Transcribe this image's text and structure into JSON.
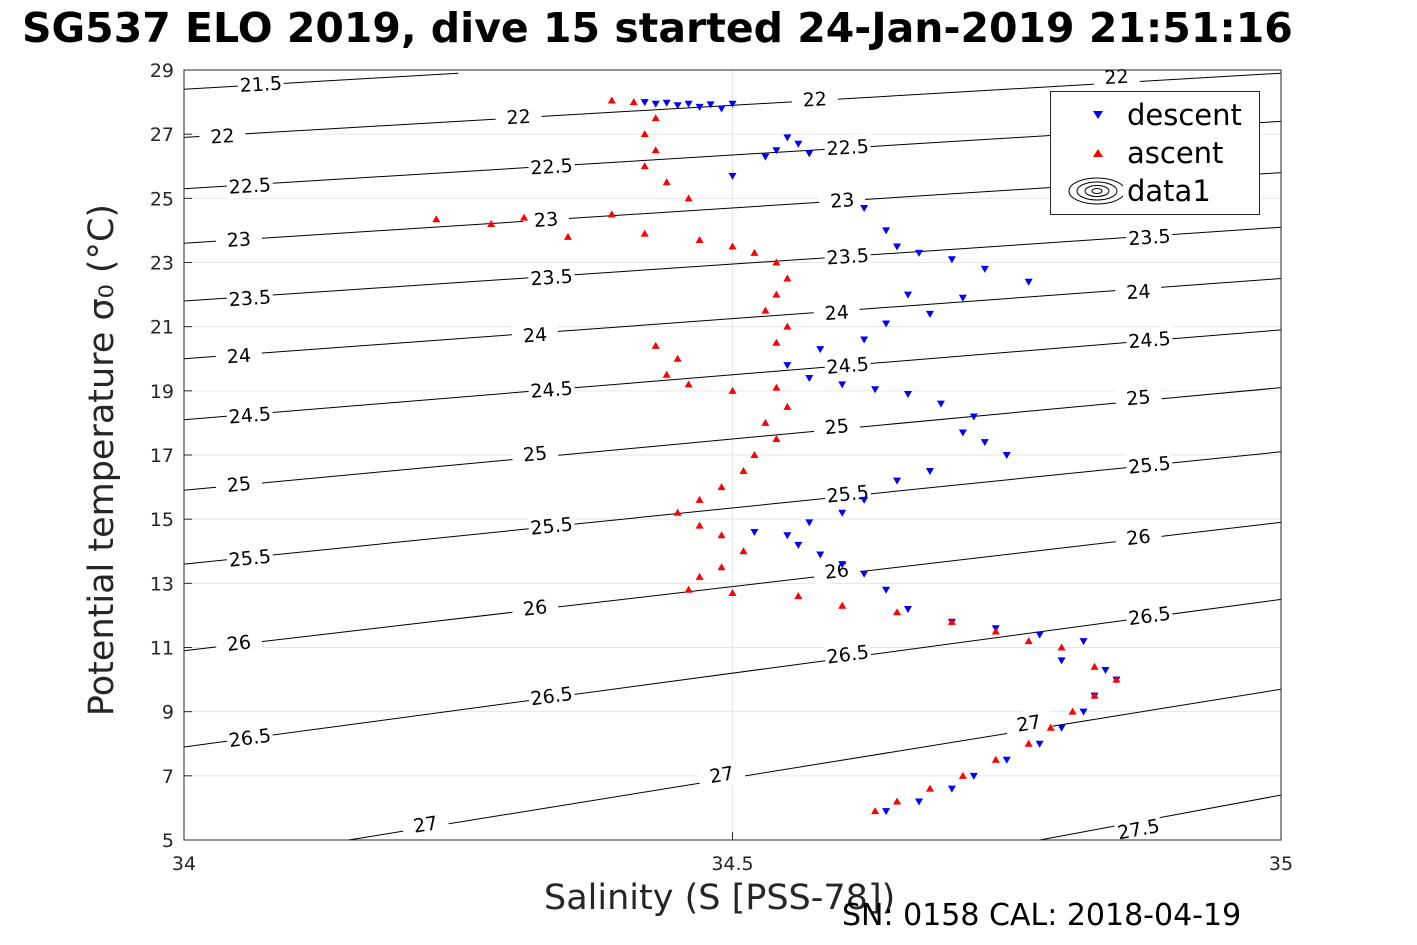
{
  "header": {
    "title": "SG537 ELO 2019, dive 15 started 24-Jan-2019 21:51:16"
  },
  "footer": {
    "sn_cal": "SN: 0158  CAL: 2018-04-19"
  },
  "chart_data": {
    "type": "scatter",
    "xlabel": "Salinity (S [PSS-78])",
    "ylabel": "Potential temperature σ₀ (°C)",
    "xlim": [
      34,
      35
    ],
    "ylim": [
      5,
      29
    ],
    "xticks": [
      "34",
      "34.5",
      "35"
    ],
    "yticks": [
      "5",
      "7",
      "9",
      "11",
      "13",
      "15",
      "17",
      "19",
      "21",
      "23",
      "25",
      "27",
      "29"
    ],
    "grid": true,
    "legend_position": "top-right",
    "colors": {
      "descent": "#0000ff",
      "ascent": "#ff0000",
      "contour": "#000000"
    },
    "legend": [
      {
        "label": "descent",
        "marker": "triangle-down",
        "color": "#0000ff"
      },
      {
        "label": "ascent",
        "marker": "triangle-up",
        "color": "#ff0000"
      },
      {
        "label": "data1",
        "marker": "contour-ellipses",
        "color": "#000000"
      }
    ],
    "contours": {
      "levels": [
        "21.5",
        "22",
        "22.5",
        "23",
        "23.5",
        "24",
        "24.5",
        "25",
        "25.5",
        "26",
        "26.5",
        "27",
        "27.5"
      ],
      "lines": [
        {
          "level": "21.5",
          "points": [
            [
              34.0,
              28.4
            ],
            [
              34.25,
              28.9
            ]
          ],
          "label_at": [
            34.07,
            28.57
          ]
        },
        {
          "level": "22",
          "points": [
            [
              34.0,
              26.9
            ],
            [
              35.0,
              28.9
            ]
          ],
          "label_points": [
            [
              34.035,
              26.95
            ],
            [
              34.305,
              27.55
            ],
            [
              34.575,
              28.1
            ],
            [
              34.85,
              28.8
            ]
          ]
        },
        {
          "level": "22.5",
          "points": [
            [
              34.0,
              25.3
            ],
            [
              35.0,
              27.4
            ]
          ],
          "label_points": [
            [
              34.06,
              25.4
            ],
            [
              34.335,
              26.0
            ],
            [
              34.605,
              26.6
            ]
          ]
        },
        {
          "level": "23",
          "points": [
            [
              34.0,
              23.6
            ],
            [
              35.0,
              25.8
            ]
          ],
          "label_points": [
            [
              34.05,
              23.73
            ],
            [
              34.33,
              24.35
            ],
            [
              34.6,
              24.95
            ]
          ]
        },
        {
          "level": "23.5",
          "points": [
            [
              34.0,
              21.8
            ],
            [
              35.0,
              24.1
            ]
          ],
          "label_points": [
            [
              34.06,
              21.9
            ],
            [
              34.335,
              22.55
            ],
            [
              34.605,
              23.2
            ],
            [
              34.88,
              23.8
            ]
          ]
        },
        {
          "level": "24",
          "points": [
            [
              34.0,
              20.0
            ],
            [
              35.0,
              22.5
            ]
          ],
          "label_points": [
            [
              34.05,
              20.1
            ],
            [
              34.32,
              20.75
            ],
            [
              34.595,
              21.45
            ],
            [
              34.87,
              22.1
            ]
          ]
        },
        {
          "level": "24.5",
          "points": [
            [
              34.0,
              18.1
            ],
            [
              35.0,
              20.9
            ]
          ],
          "label_points": [
            [
              34.06,
              18.25
            ],
            [
              34.335,
              19.05
            ],
            [
              34.605,
              19.8
            ],
            [
              34.88,
              20.6
            ]
          ]
        },
        {
          "level": "25",
          "points": [
            [
              34.0,
              15.9
            ],
            [
              35.0,
              19.1
            ]
          ],
          "label_points": [
            [
              34.05,
              16.1
            ],
            [
              34.32,
              17.05
            ],
            [
              34.595,
              17.9
            ],
            [
              34.87,
              18.8
            ]
          ]
        },
        {
          "level": "25.5",
          "points": [
            [
              34.0,
              13.6
            ],
            [
              35.0,
              17.1
            ]
          ],
          "label_points": [
            [
              34.06,
              13.8
            ],
            [
              34.335,
              14.8
            ],
            [
              34.605,
              15.8
            ],
            [
              34.88,
              16.7
            ]
          ]
        },
        {
          "level": "26",
          "points": [
            [
              34.0,
              10.9
            ],
            [
              35.0,
              14.9
            ]
          ],
          "label_points": [
            [
              34.05,
              11.15
            ],
            [
              34.32,
              12.25
            ],
            [
              34.595,
              13.4
            ],
            [
              34.87,
              14.45
            ]
          ]
        },
        {
          "level": "26.5",
          "points": [
            [
              34.0,
              7.9
            ],
            [
              35.0,
              12.5
            ]
          ],
          "label_points": [
            [
              34.06,
              8.2
            ],
            [
              34.335,
              9.5
            ],
            [
              34.605,
              10.8
            ],
            [
              34.88,
              12.0
            ]
          ]
        },
        {
          "level": "27",
          "points": [
            [
              34.15,
              5.0
            ],
            [
              35.0,
              9.7
            ]
          ],
          "label_points": [
            [
              34.22,
              5.5
            ],
            [
              34.49,
              7.05
            ],
            [
              34.77,
              8.65
            ]
          ]
        },
        {
          "level": "27.5",
          "points": [
            [
              34.78,
              5.0
            ],
            [
              35.0,
              6.4
            ]
          ],
          "label_points": [
            [
              34.87,
              5.35
            ]
          ]
        }
      ]
    },
    "series": [
      {
        "name": "descent",
        "points": [
          [
            34.42,
            28.0
          ],
          [
            34.43,
            27.95
          ],
          [
            34.44,
            27.98
          ],
          [
            34.45,
            27.9
          ],
          [
            34.46,
            27.95
          ],
          [
            34.47,
            27.85
          ],
          [
            34.48,
            27.93
          ],
          [
            34.49,
            27.8
          ],
          [
            34.5,
            27.95
          ],
          [
            34.55,
            26.9
          ],
          [
            34.56,
            26.7
          ],
          [
            34.54,
            26.5
          ],
          [
            34.53,
            26.3
          ],
          [
            34.57,
            26.4
          ],
          [
            34.5,
            25.7
          ],
          [
            34.62,
            24.7
          ],
          [
            34.64,
            24.0
          ],
          [
            34.65,
            23.5
          ],
          [
            34.67,
            23.3
          ],
          [
            34.7,
            23.1
          ],
          [
            34.73,
            22.8
          ],
          [
            34.77,
            22.4
          ],
          [
            34.66,
            22.0
          ],
          [
            34.71,
            21.9
          ],
          [
            34.68,
            21.4
          ],
          [
            34.64,
            21.1
          ],
          [
            34.62,
            20.6
          ],
          [
            34.58,
            20.3
          ],
          [
            34.55,
            19.8
          ],
          [
            34.57,
            19.4
          ],
          [
            34.6,
            19.2
          ],
          [
            34.63,
            19.05
          ],
          [
            34.66,
            18.9
          ],
          [
            34.69,
            18.6
          ],
          [
            34.72,
            18.2
          ],
          [
            34.71,
            17.7
          ],
          [
            34.73,
            17.4
          ],
          [
            34.75,
            17.0
          ],
          [
            34.68,
            16.5
          ],
          [
            34.65,
            16.2
          ],
          [
            34.62,
            15.6
          ],
          [
            34.6,
            15.2
          ],
          [
            34.57,
            14.9
          ],
          [
            34.55,
            14.5
          ],
          [
            34.52,
            14.6
          ],
          [
            34.56,
            14.2
          ],
          [
            34.58,
            13.9
          ],
          [
            34.6,
            13.6
          ],
          [
            34.62,
            13.3
          ],
          [
            34.64,
            12.8
          ],
          [
            34.66,
            12.2
          ],
          [
            34.7,
            11.8
          ],
          [
            34.74,
            11.6
          ],
          [
            34.78,
            11.4
          ],
          [
            34.82,
            11.2
          ],
          [
            34.8,
            10.6
          ],
          [
            34.84,
            10.3
          ],
          [
            34.85,
            10.0
          ],
          [
            34.83,
            9.5
          ],
          [
            34.82,
            9.0
          ],
          [
            34.8,
            8.5
          ],
          [
            34.78,
            8.0
          ],
          [
            34.75,
            7.5
          ],
          [
            34.72,
            7.0
          ],
          [
            34.7,
            6.6
          ],
          [
            34.67,
            6.2
          ],
          [
            34.64,
            5.9
          ]
        ]
      },
      {
        "name": "ascent",
        "points": [
          [
            34.39,
            28.05
          ],
          [
            34.41,
            28.0
          ],
          [
            34.43,
            27.5
          ],
          [
            34.42,
            27.0
          ],
          [
            34.43,
            26.5
          ],
          [
            34.42,
            26.0
          ],
          [
            34.44,
            25.5
          ],
          [
            34.46,
            25.0
          ],
          [
            34.23,
            24.35
          ],
          [
            34.28,
            24.2
          ],
          [
            34.31,
            24.4
          ],
          [
            34.35,
            23.8
          ],
          [
            34.39,
            24.5
          ],
          [
            34.42,
            23.9
          ],
          [
            34.47,
            23.7
          ],
          [
            34.5,
            23.5
          ],
          [
            34.52,
            23.3
          ],
          [
            34.54,
            23.0
          ],
          [
            34.55,
            22.5
          ],
          [
            34.54,
            22.0
          ],
          [
            34.53,
            21.5
          ],
          [
            34.55,
            21.0
          ],
          [
            34.54,
            20.5
          ],
          [
            34.43,
            20.4
          ],
          [
            34.45,
            20.0
          ],
          [
            34.44,
            19.5
          ],
          [
            34.46,
            19.2
          ],
          [
            34.5,
            19.0
          ],
          [
            34.54,
            19.1
          ],
          [
            34.55,
            18.5
          ],
          [
            34.53,
            18.0
          ],
          [
            34.54,
            17.5
          ],
          [
            34.52,
            17.0
          ],
          [
            34.51,
            16.5
          ],
          [
            34.49,
            16.0
          ],
          [
            34.47,
            15.6
          ],
          [
            34.45,
            15.2
          ],
          [
            34.47,
            14.8
          ],
          [
            34.49,
            14.5
          ],
          [
            34.51,
            14.0
          ],
          [
            34.49,
            13.5
          ],
          [
            34.47,
            13.2
          ],
          [
            34.46,
            12.8
          ],
          [
            34.5,
            12.7
          ],
          [
            34.56,
            12.6
          ],
          [
            34.6,
            12.3
          ],
          [
            34.65,
            12.1
          ],
          [
            34.7,
            11.8
          ],
          [
            34.74,
            11.5
          ],
          [
            34.77,
            11.2
          ],
          [
            34.8,
            11.0
          ],
          [
            34.83,
            10.4
          ],
          [
            34.85,
            10.0
          ],
          [
            34.83,
            9.5
          ],
          [
            34.81,
            9.0
          ],
          [
            34.79,
            8.5
          ],
          [
            34.77,
            8.0
          ],
          [
            34.74,
            7.5
          ],
          [
            34.71,
            7.0
          ],
          [
            34.68,
            6.6
          ],
          [
            34.65,
            6.2
          ],
          [
            34.63,
            5.9
          ]
        ]
      }
    ]
  }
}
